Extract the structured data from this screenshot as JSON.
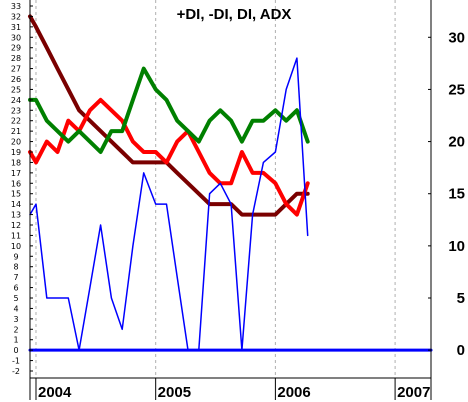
{
  "chart_data": {
    "type": "line",
    "title": "+DI, -DI, DI, ADX",
    "xlabel": "",
    "ylabel": "",
    "x_tick_labels": [
      "2004",
      "2005",
      "2006",
      "2007"
    ],
    "x_range": [
      2003.95,
      2007.3
    ],
    "left_axis": {
      "ylim": [
        -2,
        33
      ],
      "tick_labels": [
        "-2",
        "-1",
        "0",
        "1",
        "2",
        "3",
        "4",
        "5",
        "6",
        "7",
        "8",
        "9",
        "10",
        "11",
        "12",
        "13",
        "14",
        "15",
        "16",
        "17",
        "18",
        "19",
        "20",
        "21",
        "22",
        "23",
        "24",
        "25",
        "26",
        "27",
        "28",
        "29",
        "30",
        "31",
        "32",
        "33"
      ]
    },
    "right_axis": {
      "ylim": [
        -2,
        33
      ],
      "tick_labels": [
        "0",
        "5",
        "10",
        "15",
        "20",
        "25",
        "30"
      ]
    },
    "grid": "vertical dashed at years",
    "series": [
      {
        "color": "#7a0000",
        "x": [
          2003.95,
          2004.0,
          2004.09,
          2004.18,
          2004.27,
          2004.36,
          2004.45,
          2004.54,
          2004.63,
          2004.72,
          2004.81,
          2004.9,
          2005.0,
          2005.09,
          2005.18,
          2005.27,
          2005.36,
          2005.45,
          2005.54,
          2005.63,
          2005.72,
          2005.81,
          2005.9,
          2006.0,
          2006.09,
          2006.18,
          2006.27
        ],
        "values": [
          32,
          31,
          29,
          27,
          25,
          23,
          22,
          21,
          20,
          19,
          18,
          18,
          18,
          18,
          17,
          16,
          15,
          14,
          14,
          14,
          13,
          13,
          13,
          13,
          14,
          15,
          15
        ]
      },
      {
        "color": "#ff0000",
        "x": [
          2003.95,
          2004.0,
          2004.09,
          2004.18,
          2004.27,
          2004.36,
          2004.45,
          2004.54,
          2004.63,
          2004.72,
          2004.81,
          2004.9,
          2005.0,
          2005.09,
          2005.18,
          2005.27,
          2005.36,
          2005.45,
          2005.54,
          2005.63,
          2005.72,
          2005.81,
          2005.9,
          2006.0,
          2006.09,
          2006.18,
          2006.27
        ],
        "values": [
          19,
          18,
          20,
          19,
          22,
          21,
          23,
          24,
          23,
          22,
          20,
          19,
          19,
          18,
          20,
          21,
          19,
          17,
          16,
          16,
          19,
          17,
          17,
          16,
          14,
          13,
          16
        ]
      },
      {
        "color": "#008000",
        "x": [
          2003.95,
          2004.0,
          2004.09,
          2004.18,
          2004.27,
          2004.36,
          2004.45,
          2004.54,
          2004.63,
          2004.72,
          2004.81,
          2004.9,
          2005.0,
          2005.09,
          2005.18,
          2005.27,
          2005.36,
          2005.45,
          2005.54,
          2005.63,
          2005.72,
          2005.81,
          2005.9,
          2006.0,
          2006.09,
          2006.18,
          2006.27
        ],
        "values": [
          24,
          24,
          22,
          21,
          20,
          21,
          20,
          19,
          21,
          21,
          24,
          27,
          25,
          24,
          22,
          21,
          20,
          22,
          23,
          22,
          20,
          22,
          22,
          23,
          22,
          23,
          20
        ]
      },
      {
        "color": "#0000ff",
        "x": [
          2003.95,
          2004.0,
          2004.09,
          2004.18,
          2004.27,
          2004.36,
          2004.45,
          2004.54,
          2004.63,
          2004.72,
          2004.81,
          2004.9,
          2005.0,
          2005.09,
          2005.18,
          2005.27,
          2005.36,
          2005.45,
          2005.54,
          2005.63,
          2005.72,
          2005.81,
          2005.9,
          2006.0,
          2006.09,
          2006.18,
          2006.27
        ],
        "values": [
          13,
          14,
          5,
          5,
          5,
          0,
          6,
          12,
          5,
          2,
          10,
          17,
          14,
          14,
          7,
          0,
          0,
          15,
          16,
          14,
          0,
          13,
          18,
          19,
          25,
          28,
          11
        ]
      },
      {
        "color": "#0000ff",
        "x": [
          2003.95,
          2007.3
        ],
        "values": [
          0,
          0
        ]
      }
    ]
  }
}
